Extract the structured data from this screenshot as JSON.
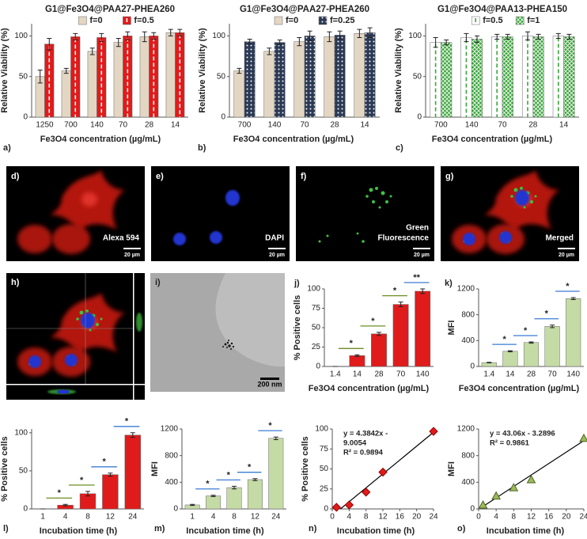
{
  "chart_data": [
    {
      "type": "bar",
      "panel": "a)",
      "title": "G1@Fe3O4@PAA27-PHEA260",
      "xlabel": "Fe3O4 concentration (µg/mL)",
      "ylabel": "Relative Viability (%)",
      "categories": [
        "1250",
        "700",
        "140",
        "70",
        "28",
        "14"
      ],
      "ylim": [
        0,
        115
      ],
      "yticks": [
        0,
        50,
        100
      ],
      "legend": true,
      "series": [
        {
          "name": "f=0",
          "color": "#e3d6c3",
          "values": [
            50,
            57,
            81,
            92,
            99,
            104
          ],
          "errors": [
            8,
            3,
            4,
            5,
            6,
            4
          ]
        },
        {
          "name": "f=0.5",
          "color": "#e01b1b",
          "pattern": "dashed-center",
          "pattern_color": "#ffffff",
          "values": [
            90,
            99,
            98,
            100,
            100,
            104
          ],
          "errors": [
            7,
            4,
            5,
            5,
            4,
            4
          ]
        }
      ]
    },
    {
      "type": "bar",
      "panel": "b)",
      "title": "G1@Fe3O4@PAA27-PHEA260",
      "xlabel": "Fe3O4 concentration (µg/mL)",
      "ylabel": "Relative Viability (%)",
      "categories": [
        "700",
        "140",
        "70",
        "28",
        "14"
      ],
      "ylim": [
        0,
        115
      ],
      "yticks": [
        0,
        50,
        100
      ],
      "legend": true,
      "series": [
        {
          "name": "f=0",
          "color": "#e3d6c3",
          "values": [
            57,
            81,
            93,
            99,
            103
          ],
          "errors": [
            3,
            4,
            5,
            6,
            5
          ]
        },
        {
          "name": "f=0.25",
          "color": "#2b3a55",
          "pattern": "dots",
          "pattern_color": "#ffffff",
          "values": [
            93,
            92,
            100,
            101,
            104
          ],
          "errors": [
            3,
            3,
            6,
            5,
            6
          ]
        }
      ]
    },
    {
      "type": "bar",
      "panel": "c)",
      "title": "G1@Fe3O4@PAA13-PHEA150",
      "xlabel": "Fe3O4 concentration (µg/mL)",
      "ylabel": "Relative Viability (%)",
      "categories": [
        "700",
        "140",
        "70",
        "28",
        "14"
      ],
      "ylim": [
        0,
        115
      ],
      "yticks": [
        0,
        50,
        100
      ],
      "legend": true,
      "series": [
        {
          "name": "f=0.5",
          "color": "#ffffff",
          "pattern": "dashed-center",
          "pattern_color": "#3aa53a",
          "values": [
            92,
            98,
            99,
            100,
            100
          ],
          "errors": [
            6,
            5,
            3,
            5,
            3
          ]
        },
        {
          "name": "f=1",
          "color": "#3aa53a",
          "pattern": "crosshatch",
          "pattern_color": "#ffffff",
          "values": [
            92,
            96,
            99,
            99,
            99
          ],
          "errors": [
            3,
            4,
            3,
            3,
            3
          ]
        }
      ]
    },
    {
      "type": "bar",
      "panel": "j)",
      "xlabel": "Fe3O4 concentration (µg/mL)",
      "ylabel": "% Positive cells",
      "categories": [
        "1.4",
        "14",
        "28",
        "70",
        "140"
      ],
      "values": [
        0,
        14,
        42,
        80,
        97
      ],
      "errors": [
        0,
        1,
        2,
        3,
        3
      ],
      "color": "#e01b1b",
      "ylim": [
        0,
        100
      ],
      "yticks": [
        0,
        25,
        50,
        75,
        100
      ],
      "significance": [
        "*",
        "*",
        "*",
        "**"
      ],
      "significance_colors": [
        "#6b8e23",
        "#6b8e23",
        "#6b8e23",
        "#3a7bd5"
      ]
    },
    {
      "type": "bar",
      "panel": "k)",
      "xlabel": "Fe3O4 concentration (µg/mL)",
      "ylabel": "MFI",
      "categories": [
        "1.4",
        "14",
        "28",
        "70",
        "140"
      ],
      "values": [
        60,
        235,
        370,
        620,
        1050
      ],
      "errors": [
        5,
        8,
        10,
        20,
        15
      ],
      "color": "#c5dba6",
      "ylim": [
        0,
        1200
      ],
      "yticks": [
        0,
        400,
        800,
        1200
      ],
      "significance": [
        "*",
        "*",
        "*",
        "*"
      ],
      "significance_colors": [
        "#3a7bd5",
        "#3a7bd5",
        "#3a7bd5",
        "#3a7bd5"
      ]
    },
    {
      "type": "bar",
      "panel": "l)",
      "xlabel": "Incubation time (h)",
      "ylabel": "% Positive cells",
      "categories": [
        "1",
        "4",
        "8",
        "12",
        "24"
      ],
      "values": [
        0,
        5,
        20,
        45,
        97
      ],
      "errors": [
        0,
        1,
        3,
        2,
        3
      ],
      "color": "#e01b1b",
      "ylim": [
        0,
        105
      ],
      "yticks": [
        0,
        50,
        100
      ],
      "significance": [
        "*",
        "*",
        "*",
        "*"
      ],
      "significance_colors": [
        "#6b8e23",
        "#6b8e23",
        "#3a7bd5",
        "#3a7bd5"
      ]
    },
    {
      "type": "bar",
      "panel": "m)",
      "xlabel": "Incubation time (h)",
      "ylabel": "MFI",
      "categories": [
        "1",
        "4",
        "8",
        "12",
        "24"
      ],
      "values": [
        60,
        195,
        320,
        440,
        1060
      ],
      "errors": [
        8,
        10,
        20,
        15,
        20
      ],
      "color": "#c5dba6",
      "ylim": [
        0,
        1200
      ],
      "yticks": [
        0,
        400,
        800,
        1200
      ],
      "significance": [
        "*",
        "*",
        "*",
        "*"
      ],
      "significance_colors": [
        "#3a7bd5",
        "#3a7bd5",
        "#3a7bd5",
        "#3a7bd5"
      ]
    },
    {
      "type": "scatter",
      "panel": "n)",
      "xlabel": "Incubation time (h)",
      "ylabel": "% Positive cells",
      "x": [
        1,
        4,
        8,
        12,
        24
      ],
      "values": [
        2,
        5,
        21,
        46,
        97
      ],
      "color": "#e01b1b",
      "marker": "diamond",
      "trendline": true,
      "xlim": [
        0,
        24
      ],
      "xticks": [
        0,
        4,
        8,
        12,
        16,
        20,
        24
      ],
      "ylim": [
        0,
        100
      ],
      "yticks": [
        0,
        25,
        50,
        75,
        100
      ],
      "annotation": [
        "y = 4.3842x -",
        "9.0054",
        "R² = 0.9894"
      ]
    },
    {
      "type": "scatter",
      "panel": "o)",
      "xlabel": "Incubation time (h)",
      "ylabel": "MFI",
      "x": [
        1,
        4,
        8,
        12,
        24
      ],
      "values": [
        60,
        195,
        320,
        440,
        1060
      ],
      "color": "#9bbb59",
      "marker": "triangle",
      "trendline": true,
      "xlim": [
        0,
        24
      ],
      "xticks": [
        0,
        4,
        8,
        12,
        16,
        20,
        24
      ],
      "ylim": [
        0,
        1200
      ],
      "yticks": [
        0,
        400,
        800,
        1200
      ],
      "annotation": [
        "y = 43.06x - 3.2896",
        "R² = 0.9861"
      ]
    }
  ],
  "panels": [
    {
      "label": "d)",
      "caption": [
        "Alexa 594"
      ],
      "scale": "20 µm"
    },
    {
      "label": "e)",
      "caption": [
        "DAPI"
      ],
      "scale": "20 µm"
    },
    {
      "label": "f)",
      "caption": [
        "Green",
        "Fluorescence"
      ],
      "scale": "20 µm"
    },
    {
      "label": "g)",
      "caption": [
        "Merged"
      ],
      "scale": "20 µm"
    },
    {
      "label": "h)"
    },
    {
      "label": "i)",
      "scale": "200 nm"
    }
  ]
}
